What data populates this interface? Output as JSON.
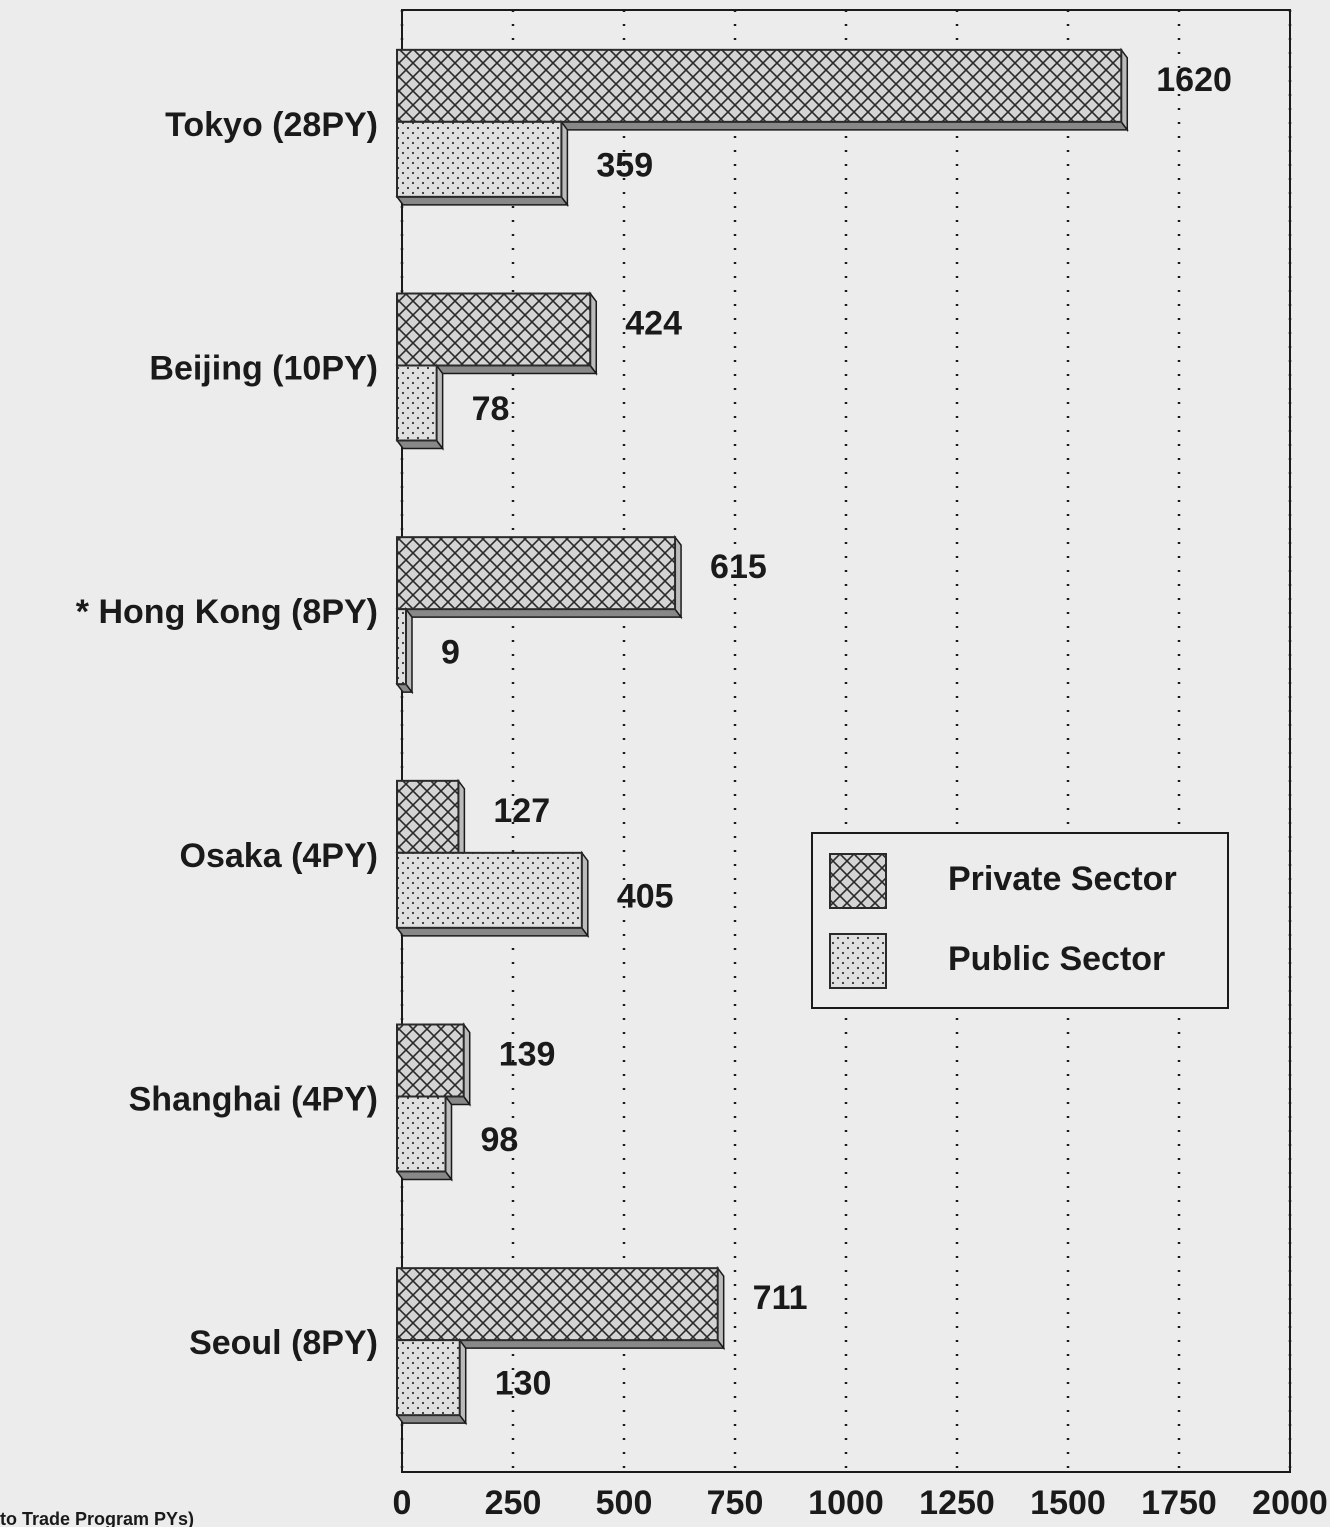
{
  "chart_data": {
    "type": "bar",
    "orientation": "horizontal",
    "categories": [
      "Tokyo (28PY)",
      "Beijing (10PY)",
      "* Hong Kong (8PY)",
      "Osaka (4PY)",
      "Shanghai (4PY)",
      "Seoul (8PY)"
    ],
    "series": [
      {
        "name": "Private Sector",
        "color": "#2a2a2a",
        "pattern": "crosshatch",
        "values": [
          1620,
          424,
          615,
          127,
          139,
          711
        ]
      },
      {
        "name": "Public Sector",
        "color": "#2a2a2a",
        "pattern": "dots",
        "values": [
          359,
          78,
          9,
          405,
          98,
          130
        ]
      }
    ],
    "xlim": [
      0,
      2000
    ],
    "xticks": [
      0,
      250,
      500,
      750,
      1000,
      1250,
      1500,
      1750,
      2000
    ],
    "grid": true,
    "legend": "right",
    "footnote": "to Trade Program PYs)"
  }
}
